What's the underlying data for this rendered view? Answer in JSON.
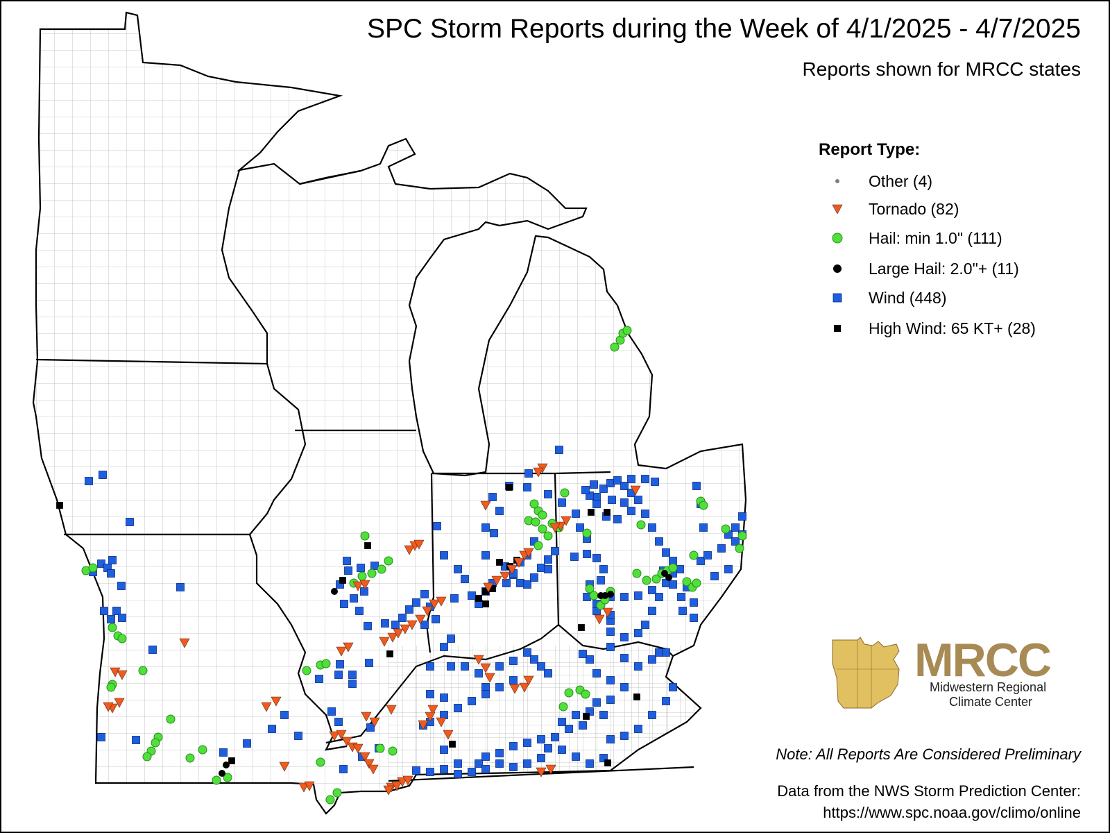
{
  "title": "SPC Storm Reports during the Week of 4/1/2025 - 4/7/2025",
  "subtitle": "Reports shown for MRCC states",
  "legend": {
    "title": "Report Type:",
    "items": [
      {
        "key": "other",
        "label": "Other (4)",
        "symbol": "small-dot",
        "color": "#808080"
      },
      {
        "key": "tornado",
        "label": "Tornado (82)",
        "symbol": "triangle-down",
        "color": "#f05a1e"
      },
      {
        "key": "hail",
        "label": "Hail: min 1.0\" (111)",
        "symbol": "circle",
        "color": "#4fe03a"
      },
      {
        "key": "large_hail",
        "label": "Large Hail: 2.0\"+ (11)",
        "symbol": "circle",
        "color": "#000000"
      },
      {
        "key": "wind",
        "label": "Wind (448)",
        "symbol": "square",
        "color": "#1e5fe0"
      },
      {
        "key": "high_wind",
        "label": "High Wind: 65 KT+ (28)",
        "symbol": "square",
        "color": "#000000"
      }
    ]
  },
  "note": "Note: All Reports Are Considered Preliminary",
  "source_line1": "Data from the NWS Storm Prediction Center:",
  "source_line2": "https://www.spc.noaa.gov/climo/online",
  "logo": {
    "name": "MRCC",
    "line1": "Midwestern Regional",
    "line2": "Climate Center",
    "color": "#a88a55"
  },
  "map": {
    "background": "#ffffff",
    "state_border_color": "#000000",
    "county_border_color": "#b0b0b0",
    "states": [
      "Minnesota",
      "Iowa",
      "Missouri",
      "Wisconsin",
      "Illinois",
      "Michigan",
      "Indiana",
      "Ohio",
      "Kentucky"
    ]
  }
}
